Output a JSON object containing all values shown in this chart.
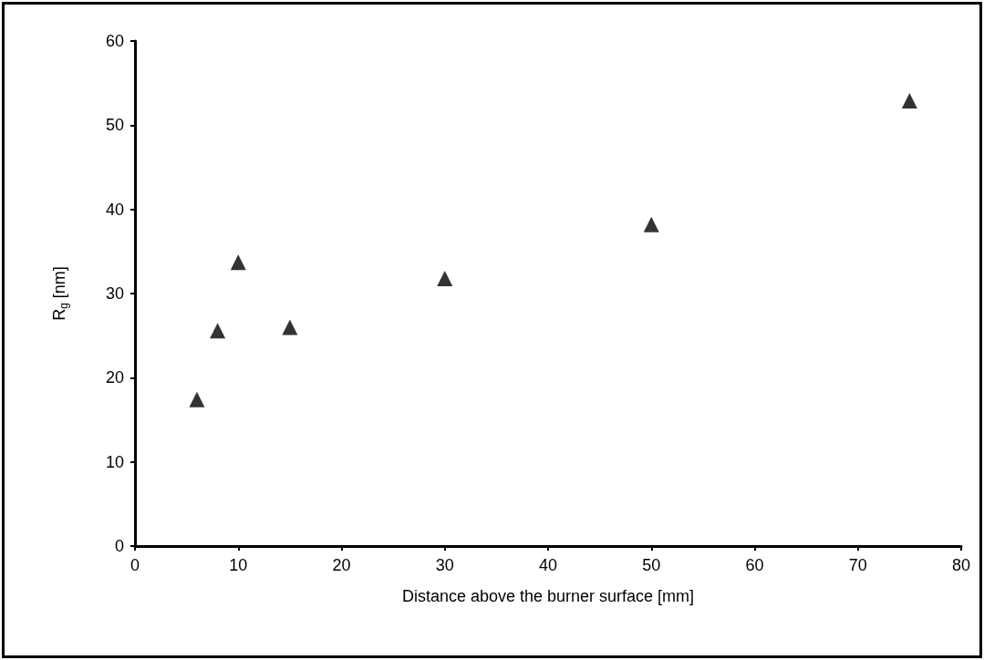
{
  "chart_data": {
    "type": "scatter",
    "xlabel": "Distance above the burner surface [mm]",
    "ylabel": "R$_{g}$ [nm]",
    "x": [
      6,
      8,
      10,
      15,
      30,
      50,
      75
    ],
    "series": [
      {
        "color": "#000000",
        "values": [
          17.4,
          25.6,
          33.7,
          26.0,
          31.8,
          38.2,
          52.9
        ]
      }
    ],
    "marker": "triangle",
    "xlim": [
      0,
      80
    ],
    "xticks": [
      0,
      10,
      20,
      30,
      40,
      50,
      60,
      70,
      80
    ],
    "ylim": [
      0,
      60
    ],
    "yticks": [
      0,
      10,
      20,
      30,
      40,
      50,
      60
    ]
  }
}
